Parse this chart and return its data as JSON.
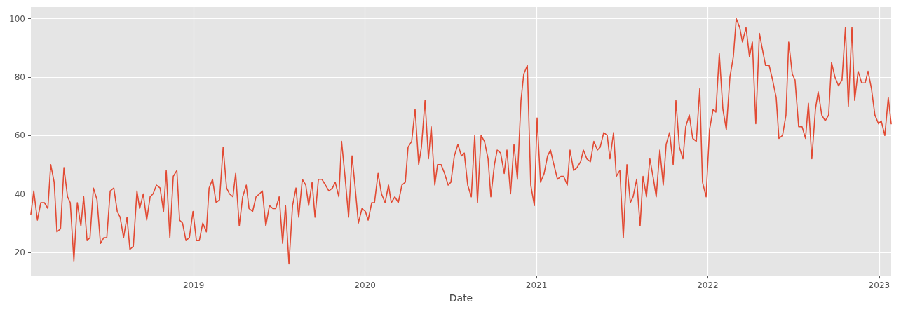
{
  "chart_data": {
    "type": "line",
    "xlabel": "Date",
    "x": [
      2018.05,
      2018.067,
      2018.088,
      2018.108,
      2018.129,
      2018.149,
      2018.166,
      2018.186,
      2018.202,
      2018.223,
      2018.243,
      2018.264,
      2018.28,
      2018.301,
      2018.321,
      2018.342,
      2018.358,
      2018.378,
      2018.395,
      2018.415,
      2018.436,
      2018.456,
      2018.476,
      2018.493,
      2018.513,
      2018.534,
      2018.554,
      2018.571,
      2018.591,
      2018.611,
      2018.628,
      2018.648,
      2018.669,
      2018.685,
      2018.706,
      2018.726,
      2018.746,
      2018.763,
      2018.783,
      2018.804,
      2018.824,
      2018.84,
      2018.861,
      2018.881,
      2018.902,
      2018.918,
      2018.935,
      2018.955,
      2018.975,
      2018.996,
      2019.016,
      2019.033,
      2019.053,
      2019.074,
      2019.09,
      2019.11,
      2019.131,
      2019.151,
      2019.172,
      2019.192,
      2019.209,
      2019.229,
      2019.245,
      2019.266,
      2019.286,
      2019.307,
      2019.323,
      2019.344,
      2019.364,
      2019.384,
      2019.401,
      2019.421,
      2019.442,
      2019.462,
      2019.479,
      2019.499,
      2019.519,
      2019.536,
      2019.556,
      2019.577,
      2019.597,
      2019.613,
      2019.634,
      2019.654,
      2019.671,
      2019.691,
      2019.708,
      2019.728,
      2019.748,
      2019.769,
      2019.789,
      2019.81,
      2019.826,
      2019.847,
      2019.863,
      2019.883,
      2019.904,
      2019.924,
      2019.941,
      2019.961,
      2019.982,
      2020.002,
      2020.018,
      2020.039,
      2020.055,
      2020.076,
      2020.096,
      2020.117,
      2020.137,
      2020.153,
      2020.174,
      2020.194,
      2020.215,
      2020.235,
      2020.251,
      2020.272,
      2020.292,
      2020.313,
      2020.329,
      2020.35,
      2020.37,
      2020.386,
      2020.407,
      2020.423,
      2020.444,
      2020.464,
      2020.485,
      2020.501,
      2020.521,
      2020.542,
      2020.562,
      2020.579,
      2020.599,
      2020.62,
      2020.64,
      2020.656,
      2020.677,
      2020.697,
      2020.718,
      2020.734,
      2020.755,
      2020.771,
      2020.791,
      2020.812,
      2020.828,
      2020.849,
      2020.869,
      2020.889,
      2020.91,
      2020.926,
      2020.947,
      2020.967,
      2020.988,
      2021.004,
      2021.024,
      2021.045,
      2021.065,
      2021.082,
      2021.102,
      2021.123,
      2021.143,
      2021.159,
      2021.18,
      2021.196,
      2021.217,
      2021.237,
      2021.258,
      2021.274,
      2021.294,
      2021.315,
      2021.335,
      2021.356,
      2021.372,
      2021.393,
      2021.413,
      2021.429,
      2021.45,
      2021.466,
      2021.487,
      2021.507,
      2021.528,
      2021.548,
      2021.564,
      2021.585,
      2021.605,
      2021.622,
      2021.642,
      2021.662,
      2021.683,
      2021.699,
      2021.72,
      2021.74,
      2021.757,
      2021.777,
      2021.798,
      2021.814,
      2021.834,
      2021.855,
      2021.871,
      2021.892,
      2021.912,
      2021.933,
      2021.953,
      2021.969,
      2021.99,
      2022.01,
      2022.031,
      2022.047,
      2022.067,
      2022.088,
      2022.108,
      2022.129,
      2022.149,
      2022.166,
      2022.186,
      2022.202,
      2022.223,
      2022.243,
      2022.26,
      2022.28,
      2022.301,
      2022.317,
      2022.337,
      2022.358,
      2022.378,
      2022.399,
      2022.415,
      2022.436,
      2022.456,
      2022.472,
      2022.493,
      2022.509,
      2022.53,
      2022.55,
      2022.57,
      2022.587,
      2022.607,
      2022.628,
      2022.644,
      2022.665,
      2022.685,
      2022.705,
      2022.722,
      2022.742,
      2022.763,
      2022.783,
      2022.803,
      2022.82,
      2022.841,
      2022.857,
      2022.877,
      2022.898,
      2022.918,
      2022.935,
      2022.955,
      2022.975,
      2022.996,
      2023.012,
      2023.033,
      2023.053,
      2023.07
    ],
    "series": [
      {
        "color": "#e24a33",
        "values": [
          33,
          41,
          31,
          37,
          37,
          35,
          50,
          44,
          27,
          28,
          49,
          39,
          37,
          17,
          37,
          29,
          39,
          24,
          25,
          42,
          38,
          23,
          25,
          25,
          41,
          42,
          34,
          32,
          25,
          32,
          21,
          22,
          41,
          35,
          40,
          31,
          39,
          40,
          43,
          42,
          34,
          48,
          25,
          46,
          48,
          31,
          30,
          24,
          25,
          34,
          24,
          24,
          30,
          27,
          42,
          45,
          37,
          38,
          56,
          42,
          40,
          39,
          47,
          29,
          39,
          43,
          35,
          34,
          39,
          40,
          41,
          29,
          36,
          35,
          35,
          39,
          23,
          36,
          16,
          36,
          42,
          32,
          45,
          43,
          36,
          44,
          32,
          45,
          45,
          43,
          41,
          42,
          44,
          39,
          58,
          46,
          32,
          53,
          43,
          30,
          35,
          34,
          31,
          37,
          37,
          47,
          40,
          37,
          43,
          37,
          39,
          37,
          43,
          44,
          56,
          58,
          69,
          50,
          56,
          72,
          52,
          63,
          43,
          50,
          50,
          47,
          43,
          44,
          53,
          57,
          53,
          54,
          43,
          39,
          60,
          37,
          60,
          58,
          52,
          39,
          50,
          55,
          54,
          47,
          55,
          40,
          57,
          45,
          72,
          81,
          84,
          43,
          36,
          66,
          44,
          47,
          53,
          55,
          50,
          45,
          46,
          46,
          43,
          55,
          48,
          49,
          51,
          55,
          52,
          51,
          58,
          55,
          56,
          61,
          60,
          52,
          61,
          46,
          48,
          25,
          50,
          37,
          39,
          45,
          29,
          46,
          39,
          52,
          45,
          39,
          55,
          43,
          57,
          61,
          50,
          72,
          56,
          52,
          63,
          67,
          59,
          58,
          76,
          44,
          39,
          62,
          69,
          68,
          88,
          69,
          62,
          80,
          87,
          100,
          97,
          92,
          97,
          87,
          92,
          64,
          95,
          90,
          84,
          84,
          79,
          73,
          59,
          60,
          67,
          92,
          81,
          79,
          63,
          63,
          59,
          71,
          52,
          69,
          75,
          67,
          65,
          67,
          85,
          80,
          77,
          79,
          97,
          70,
          97,
          72,
          82,
          78,
          78,
          82,
          76,
          67,
          64,
          65,
          60,
          73,
          64
        ]
      }
    ],
    "xlim": [
      2018.05,
      2023.07
    ],
    "xticks": [
      2019,
      2020,
      2021,
      2022,
      2023
    ],
    "ylim": [
      12,
      104
    ],
    "yticks": [
      20,
      40,
      60,
      80,
      100
    ],
    "grid": true,
    "marker": "none",
    "line_style": "solid"
  }
}
